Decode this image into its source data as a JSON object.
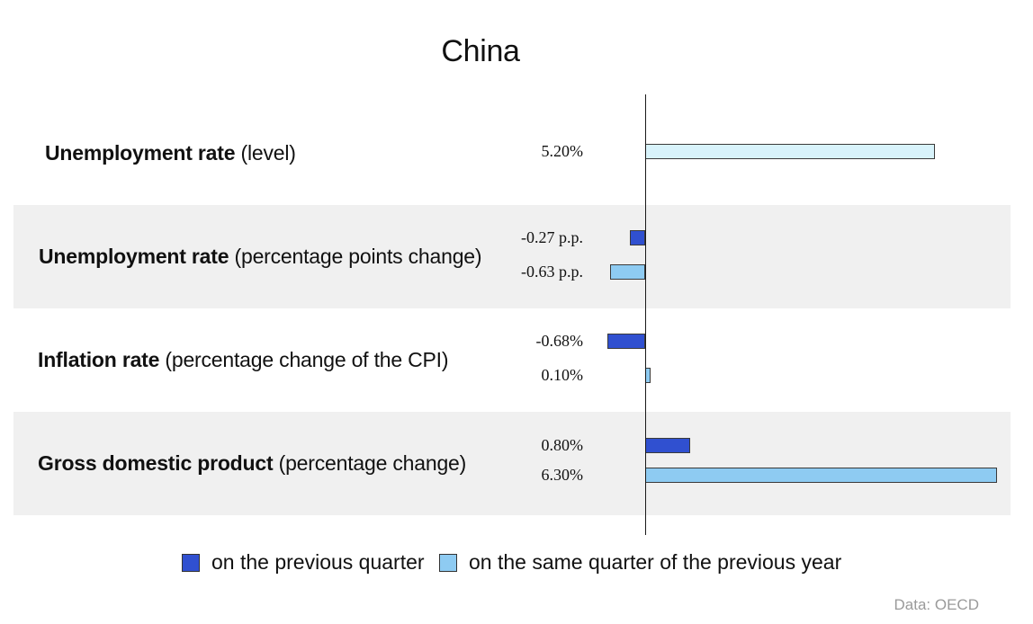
{
  "chart_data": {
    "type": "bar",
    "orientation": "horizontal",
    "title": "China",
    "source": "Data: OECD",
    "legend_position": "bottom",
    "legend": [
      {
        "name": "on the previous quarter",
        "color": "#3050d0"
      },
      {
        "name": "on the same quarter of the previous year",
        "color": "#8ecbf2"
      }
    ],
    "colors": {
      "previous_quarter": "#3050d0",
      "previous_year": "#8ecbf2",
      "level": "#d8f3fb",
      "band": "#f0f0f0"
    },
    "indicators": [
      {
        "bold": "Unemployment rate",
        "rest": " (level)",
        "banded": false,
        "bars": [
          {
            "series": "level",
            "value": 5.2,
            "label": "5.20%"
          }
        ]
      },
      {
        "bold": "Unemployment rate",
        "rest": " (percentage points change)",
        "banded": true,
        "bars": [
          {
            "series": "previous_quarter",
            "value": -0.27,
            "label": "-0.27 p.p."
          },
          {
            "series": "previous_year",
            "value": -0.63,
            "label": "-0.63 p.p."
          }
        ]
      },
      {
        "bold": "Inflation rate",
        "rest": " (percentage change of the CPI)",
        "banded": false,
        "bars": [
          {
            "series": "previous_quarter",
            "value": -0.68,
            "label": "-0.68%"
          },
          {
            "series": "previous_year",
            "value": 0.1,
            "label": "0.10%"
          }
        ]
      },
      {
        "bold": "Gross domestic product",
        "rest": " (percentage change)",
        "banded": true,
        "bars": [
          {
            "series": "previous_quarter",
            "value": 0.8,
            "label": "0.80%"
          },
          {
            "series": "previous_year",
            "value": 6.3,
            "label": "6.30%"
          }
        ]
      }
    ]
  }
}
